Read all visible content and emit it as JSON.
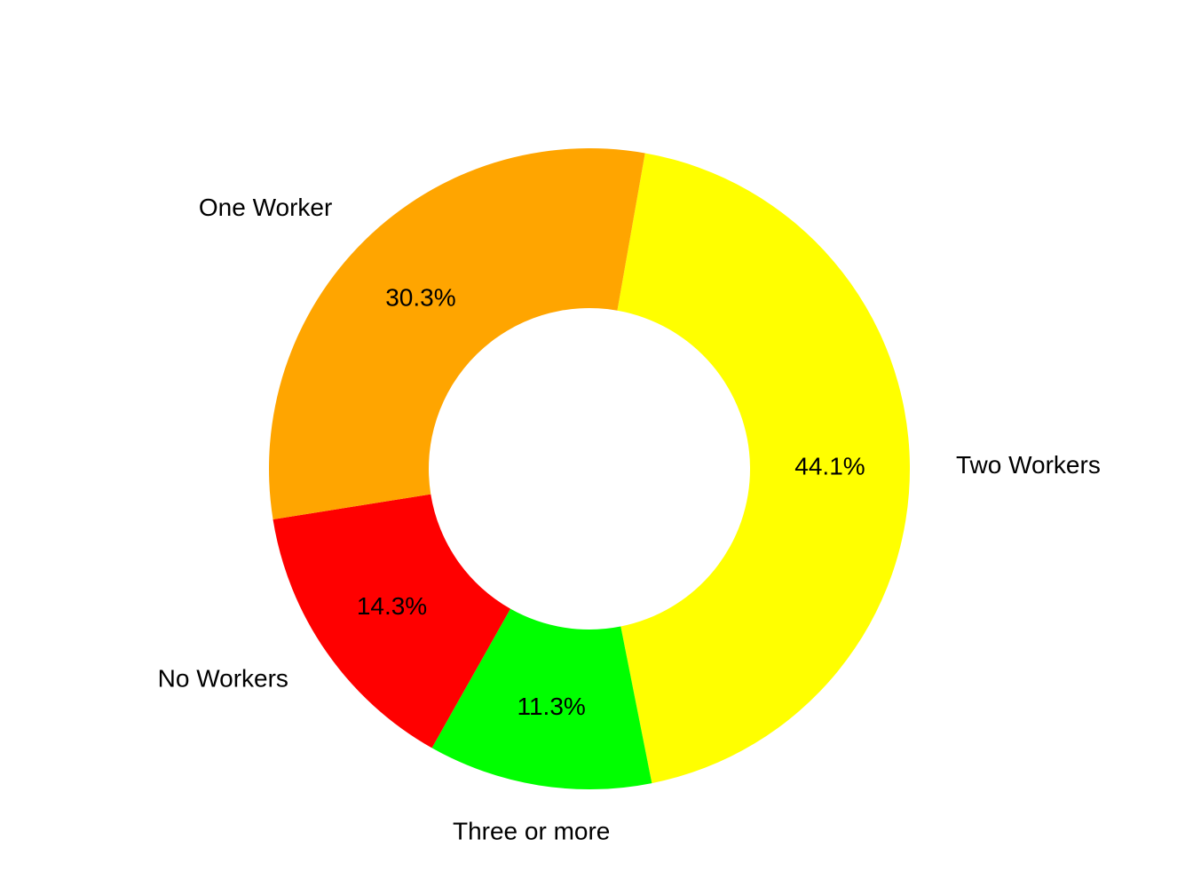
{
  "chart_data": {
    "type": "pie",
    "subtype": "donut",
    "title": "",
    "slices": [
      {
        "label": "Two Workers",
        "value": 44.1,
        "value_label": "44.1%",
        "color": "#FFFF00"
      },
      {
        "label": "Three or more",
        "value": 11.3,
        "value_label": "11.3%",
        "color": "#00FF00"
      },
      {
        "label": "No Workers",
        "value": 14.3,
        "value_label": "14.3%",
        "color": "#FF0000"
      },
      {
        "label": "One Worker",
        "value": 30.3,
        "value_label": "30.3%",
        "color": "#FFA500"
      }
    ],
    "legend": "none",
    "grid": false
  }
}
